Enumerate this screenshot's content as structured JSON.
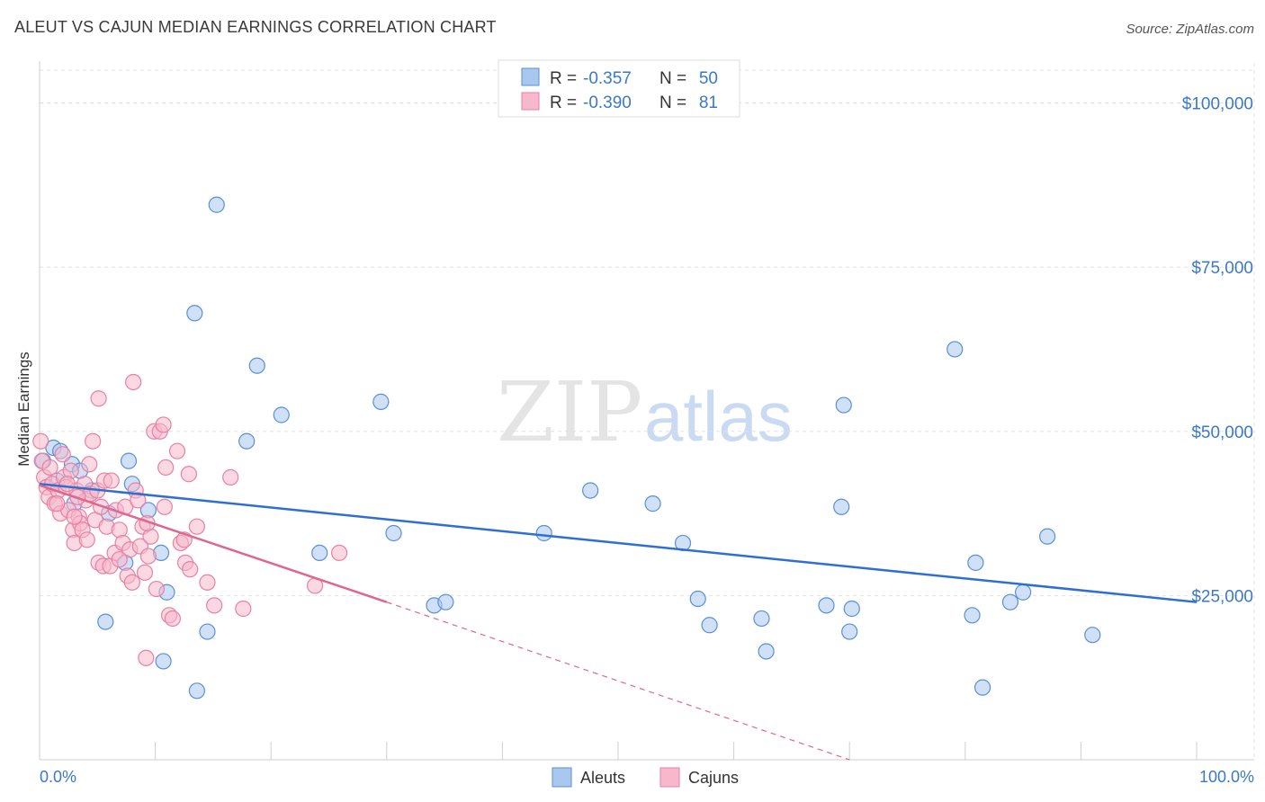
{
  "title": "ALEUT VS CAJUN MEDIAN EARNINGS CORRELATION CHART",
  "source": "Source: ZipAtlas.com",
  "watermark": {
    "zip": "ZIP",
    "atlas": "atlas"
  },
  "colors": {
    "aleuts_fill": "#a9c8f0",
    "aleuts_stroke": "#5a8fd6",
    "aleuts_line": "#2f6fcf",
    "cajuns_fill": "#f7b8cb",
    "cajuns_stroke": "#e880a3",
    "cajuns_line": "#e0668e",
    "axis_text": "#3c78c8",
    "grid": "#e2e2e2"
  },
  "legend": {
    "rows": [
      {
        "r_label": "R =",
        "r_value": "-0.357",
        "n_label": "N =",
        "n_value": "50"
      },
      {
        "r_label": "R =",
        "r_value": "-0.390",
        "n_label": "N =",
        "n_value": "81"
      }
    ]
  },
  "chart_data": {
    "type": "scatter",
    "xlabel": "",
    "ylabel": "Median Earnings",
    "xlim": [
      0,
      100
    ],
    "ylim": [
      0,
      105000
    ],
    "x_tick_labels": [
      "0.0%",
      "100.0%"
    ],
    "y_ticks": [
      25000,
      50000,
      75000,
      100000
    ],
    "y_tick_labels": [
      "$25,000",
      "$50,000",
      "$75,000",
      "$100,000"
    ],
    "grid": true,
    "legend_position": "top-center",
    "series": [
      {
        "name": "Aleuts",
        "r": -0.357,
        "n": 50,
        "trend": {
          "x0": 0,
          "y0": 42000,
          "x1": 100,
          "y1": 24000
        },
        "points": [
          [
            0.3,
            45500
          ],
          [
            1.2,
            47500
          ],
          [
            1.8,
            47000
          ],
          [
            1.5,
            42500
          ],
          [
            2.8,
            45000
          ],
          [
            3.5,
            44000
          ],
          [
            3.0,
            39000
          ],
          [
            4.5,
            41000
          ],
          [
            6.0,
            37500
          ],
          [
            7.7,
            45500
          ],
          [
            9.4,
            38000
          ],
          [
            7.4,
            30000
          ],
          [
            10.5,
            31500
          ],
          [
            11.0,
            25500
          ],
          [
            5.7,
            21000
          ],
          [
            14.5,
            19500
          ],
          [
            10.7,
            15000
          ],
          [
            13.6,
            10500
          ],
          [
            15.3,
            84500
          ],
          [
            13.4,
            68000
          ],
          [
            18.8,
            60000
          ],
          [
            17.9,
            48500
          ],
          [
            20.9,
            52500
          ],
          [
            24.2,
            31500
          ],
          [
            29.5,
            54500
          ],
          [
            30.6,
            34500
          ],
          [
            34.1,
            23500
          ],
          [
            35.1,
            24000
          ],
          [
            43.6,
            34500
          ],
          [
            47.6,
            41000
          ],
          [
            53.0,
            39000
          ],
          [
            55.6,
            33000
          ],
          [
            56.9,
            24500
          ],
          [
            57.9,
            20500
          ],
          [
            62.4,
            21500
          ],
          [
            62.8,
            16500
          ],
          [
            68.0,
            23500
          ],
          [
            69.5,
            54000
          ],
          [
            70.0,
            19500
          ],
          [
            70.2,
            23000
          ],
          [
            69.3,
            38500
          ],
          [
            79.1,
            62500
          ],
          [
            80.6,
            22000
          ],
          [
            80.9,
            30000
          ],
          [
            81.5,
            11000
          ],
          [
            83.9,
            24000
          ],
          [
            85.0,
            25500
          ],
          [
            87.1,
            34000
          ],
          [
            91.0,
            19000
          ],
          [
            8.0,
            42000
          ]
        ]
      },
      {
        "name": "Cajuns",
        "r": -0.39,
        "n": 81,
        "trend": {
          "x0": 0,
          "y0": 41800,
          "x1": 30,
          "y1": 24000
        },
        "trend_extended": {
          "x0": 30,
          "y0": 24000,
          "x1": 70,
          "y1": 0
        },
        "points": [
          [
            0.1,
            48500
          ],
          [
            0.2,
            45500
          ],
          [
            0.4,
            43000
          ],
          [
            0.6,
            41500
          ],
          [
            0.8,
            40000
          ],
          [
            0.9,
            44500
          ],
          [
            1.1,
            42000
          ],
          [
            1.3,
            39000
          ],
          [
            1.6,
            41000
          ],
          [
            1.8,
            37500
          ],
          [
            2.0,
            46500
          ],
          [
            2.1,
            43000
          ],
          [
            2.3,
            41500
          ],
          [
            2.5,
            38000
          ],
          [
            2.7,
            44000
          ],
          [
            2.9,
            35000
          ],
          [
            3.0,
            33000
          ],
          [
            3.2,
            41000
          ],
          [
            3.4,
            37000
          ],
          [
            3.5,
            36000
          ],
          [
            3.7,
            35000
          ],
          [
            3.9,
            42000
          ],
          [
            4.0,
            39500
          ],
          [
            4.1,
            33500
          ],
          [
            4.3,
            45000
          ],
          [
            4.4,
            40500
          ],
          [
            4.6,
            48500
          ],
          [
            4.8,
            36500
          ],
          [
            5.0,
            41000
          ],
          [
            5.1,
            30000
          ],
          [
            5.3,
            38500
          ],
          [
            5.5,
            29500
          ],
          [
            5.6,
            42500
          ],
          [
            5.8,
            35500
          ],
          [
            6.1,
            29500
          ],
          [
            6.2,
            42500
          ],
          [
            6.5,
            31500
          ],
          [
            6.6,
            38000
          ],
          [
            6.9,
            35000
          ],
          [
            7.2,
            33000
          ],
          [
            7.4,
            38500
          ],
          [
            7.6,
            28000
          ],
          [
            7.8,
            32000
          ],
          [
            8.0,
            27000
          ],
          [
            8.3,
            41000
          ],
          [
            8.5,
            39500
          ],
          [
            8.7,
            32500
          ],
          [
            8.9,
            35500
          ],
          [
            9.1,
            28500
          ],
          [
            9.4,
            31000
          ],
          [
            9.6,
            34000
          ],
          [
            9.9,
            50000
          ],
          [
            10.1,
            26000
          ],
          [
            10.4,
            50000
          ],
          [
            10.7,
            51000
          ],
          [
            10.9,
            44500
          ],
          [
            11.2,
            22000
          ],
          [
            11.5,
            21500
          ],
          [
            11.9,
            47000
          ],
          [
            12.2,
            33000
          ],
          [
            12.5,
            33500
          ],
          [
            12.9,
            43500
          ],
          [
            13.6,
            35500
          ],
          [
            14.5,
            27000
          ],
          [
            15.1,
            23500
          ],
          [
            16.5,
            43000
          ],
          [
            17.6,
            23000
          ],
          [
            23.8,
            26500
          ],
          [
            25.9,
            31500
          ],
          [
            8.1,
            57500
          ],
          [
            5.1,
            55000
          ],
          [
            9.3,
            36000
          ],
          [
            10.8,
            38500
          ],
          [
            12.6,
            30000
          ],
          [
            13.0,
            29000
          ],
          [
            6.9,
            30500
          ],
          [
            9.2,
            15500
          ],
          [
            3.0,
            37000
          ],
          [
            1.5,
            39000
          ],
          [
            2.4,
            42000
          ],
          [
            3.3,
            40000
          ]
        ]
      }
    ]
  }
}
